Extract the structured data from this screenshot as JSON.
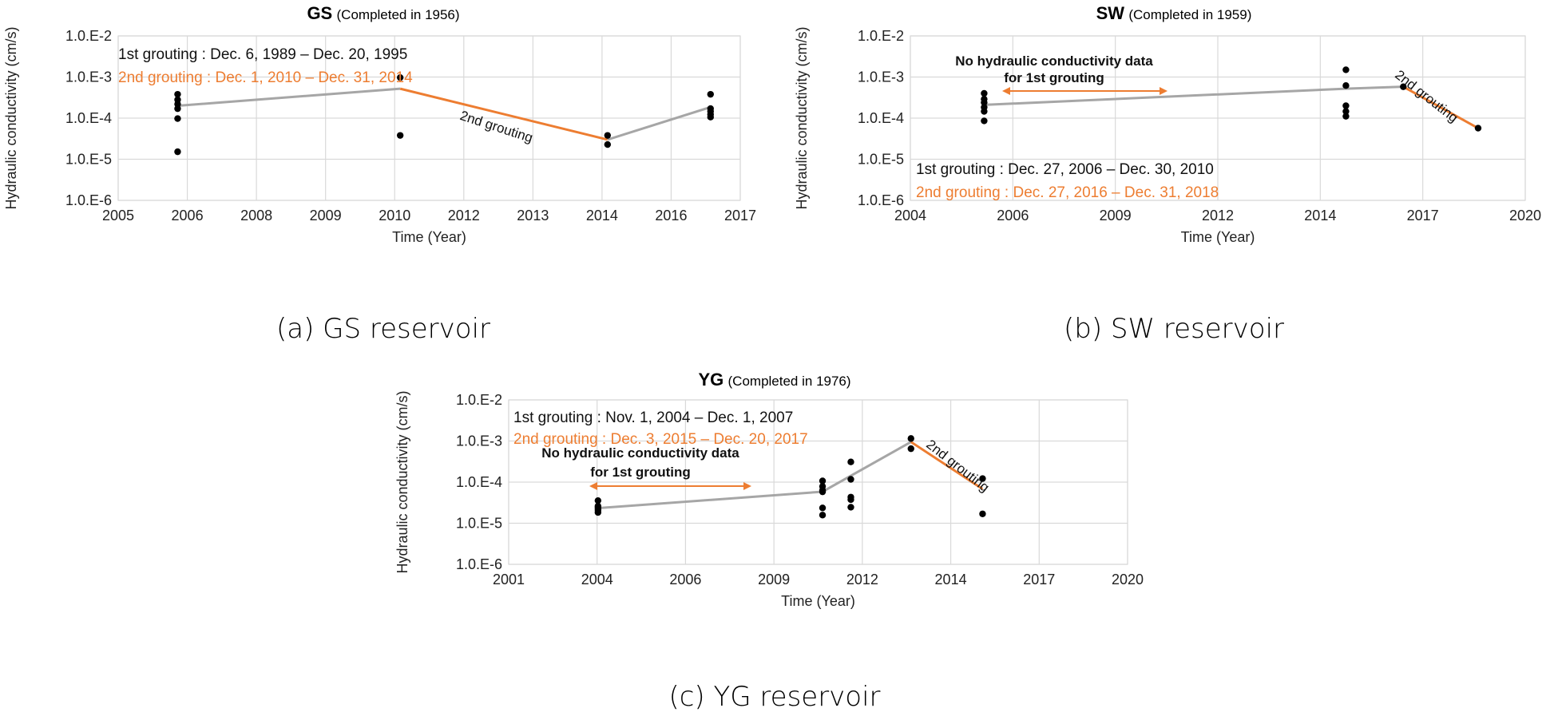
{
  "colors": {
    "orange": "#ed7d31",
    "trend_gray": "#a6a6a6",
    "grid": "#d9d9d9",
    "point": "#000000"
  },
  "panels": [
    {
      "code": "GS",
      "completed": "(Completed in 1956)",
      "caption": "(a) GS reservoir",
      "legend1": "1st grouting : Dec. 6, 1989 – Dec. 20, 1995",
      "legend2": "2nd grouting : Dec. 1, 2010 – Dec. 31, 2014",
      "annotation": "2nd grouting",
      "note": ""
    },
    {
      "code": "SW",
      "completed": "(Completed in 1959)",
      "caption": "(b) SW reservoir",
      "legend1": "1st grouting : Dec. 27, 2006 – Dec. 30, 2010",
      "legend2": "2nd grouting : Dec. 27, 2016 – Dec. 31, 2018",
      "annotation": "2nd grouting",
      "note": "No hydraulic conductivity data for 1st grouting"
    },
    {
      "code": "YG",
      "completed": "(Completed in 1976)",
      "caption": "(c) YG reservoir",
      "legend1": "1st grouting : Nov. 1, 2004 – Dec. 1, 2007",
      "legend2": "2nd grouting : Dec. 3, 2015 – Dec. 20, 2017",
      "annotation": "2nd grouting",
      "note": "No hydraulic conductivity data for 1st grouting"
    }
  ],
  "chart_data": [
    {
      "type": "scatter",
      "title": "GS",
      "xlabel": "Time (Year)",
      "ylabel": "Hydraulic conductivity (cm/s)",
      "y_scale": "log",
      "y_ticks": [
        "1.0.E-6",
        "1.0.E-5",
        "1.0.E-4",
        "1.0.E-3",
        "1.0.E-2"
      ],
      "x_ticks": [
        "2005",
        "2006",
        "2008",
        "2009",
        "2010",
        "2012",
        "2013",
        "2014",
        "2016",
        "2017"
      ],
      "x_tick_count": 10,
      "xlim_ticks": [
        0,
        9
      ],
      "ylim_exp": [
        -6,
        -2
      ],
      "points": [
        [
          0.86,
          0.00038
        ],
        [
          0.86,
          0.00028
        ],
        [
          0.86,
          0.00022
        ],
        [
          0.86,
          0.00017
        ],
        [
          0.86,
          9.75e-05
        ],
        [
          0.86,
          1.52e-05
        ],
        [
          4.08,
          0.00097
        ],
        [
          4.08,
          3.8e-05
        ],
        [
          7.08,
          3.8e-05
        ],
        [
          7.08,
          2.28e-05
        ],
        [
          8.57,
          0.00038
        ],
        [
          8.57,
          0.00017
        ],
        [
          8.57,
          0.000146
        ],
        [
          8.57,
          0.000124
        ],
        [
          8.57,
          0.000106
        ]
      ],
      "series": [
        {
          "name": "gray",
          "points": [
            [
              0.86,
              0.0002
            ],
            [
              4.08,
              0.00052
            ]
          ]
        },
        {
          "name": "orange",
          "points": [
            [
              4.08,
              0.00052
            ],
            [
              7.08,
              3e-05
            ]
          ]
        },
        {
          "name": "gray2",
          "points": [
            [
              7.08,
              3e-05
            ],
            [
              8.57,
              0.000185
            ]
          ]
        }
      ]
    },
    {
      "type": "scatter",
      "title": "SW",
      "xlabel": "Time (Year)",
      "ylabel": "Hydraulic conductivity (cm/s)",
      "y_scale": "log",
      "y_ticks": [
        "1.0.E-6",
        "1.0.E-5",
        "1.0.E-4",
        "1.0.E-3",
        "1.0.E-2"
      ],
      "x_ticks": [
        "2004",
        "2006",
        "2009",
        "2012",
        "2014",
        "2017",
        "2020"
      ],
      "x_tick_count": 7,
      "xlim_ticks": [
        0,
        6
      ],
      "ylim_exp": [
        -6,
        -2
      ],
      "points": [
        [
          0.72,
          0.0004
        ],
        [
          0.72,
          0.00029
        ],
        [
          0.72,
          0.00024
        ],
        [
          0.72,
          0.000183
        ],
        [
          0.72,
          0.000146
        ],
        [
          0.72,
          8.58e-05
        ],
        [
          4.25,
          0.0015
        ],
        [
          4.25,
          0.00062
        ],
        [
          4.25,
          0.0002
        ],
        [
          4.25,
          0.000146
        ],
        [
          4.25,
          0.000111
        ],
        [
          4.81,
          0.00058
        ],
        [
          5.54,
          5.7e-05
        ]
      ],
      "series": [
        {
          "name": "gray",
          "points": [
            [
              0.72,
              0.00021
            ],
            [
              4.25,
              0.00052
            ],
            [
              4.81,
              0.00058
            ]
          ]
        },
        {
          "name": "orange",
          "points": [
            [
              4.81,
              0.00058
            ],
            [
              5.54,
              5.7e-05
            ]
          ]
        }
      ]
    },
    {
      "type": "scatter",
      "title": "YG",
      "xlabel": "Time (Year)",
      "ylabel": "Hydraulic conductivity (cm/s)",
      "y_scale": "log",
      "y_ticks": [
        "1.0.E-6",
        "1.0.E-5",
        "1.0.E-4",
        "1.0.E-3",
        "1.0.E-2"
      ],
      "x_ticks": [
        "2001",
        "2004",
        "2006",
        "2009",
        "2012",
        "2014",
        "2017",
        "2020"
      ],
      "x_tick_count": 8,
      "xlim_ticks": [
        0,
        7
      ],
      "ylim_exp": [
        -6,
        -2
      ],
      "points": [
        [
          1.01,
          3.55e-05
        ],
        [
          1.01,
          2.6e-05
        ],
        [
          1.01,
          2.34e-05
        ],
        [
          1.01,
          2.1e-05
        ],
        [
          1.01,
          1.83e-05
        ],
        [
          3.55,
          0.000107
        ],
        [
          3.55,
          7.88e-05
        ],
        [
          3.55,
          6.33e-05
        ],
        [
          3.55,
          5.81e-05
        ],
        [
          3.55,
          2.36e-05
        ],
        [
          3.55,
          1.58e-05
        ],
        [
          3.87,
          0.00031
        ],
        [
          3.87,
          0.000117
        ],
        [
          3.87,
          4.32e-05
        ],
        [
          3.87,
          3.76e-05
        ],
        [
          3.87,
          2.45e-05
        ],
        [
          4.55,
          0.00115
        ],
        [
          4.55,
          0.00065
        ],
        [
          5.36,
          0.000122
        ],
        [
          5.36,
          1.69e-05
        ]
      ],
      "series": [
        {
          "name": "gray",
          "points": [
            [
              1.01,
              2.33e-05
            ],
            [
              3.55,
              5.85e-05
            ],
            [
              4.55,
              0.00095
            ]
          ]
        },
        {
          "name": "orange",
          "points": [
            [
              4.55,
              0.00095
            ],
            [
              5.36,
              6.8e-05
            ]
          ]
        }
      ]
    }
  ]
}
